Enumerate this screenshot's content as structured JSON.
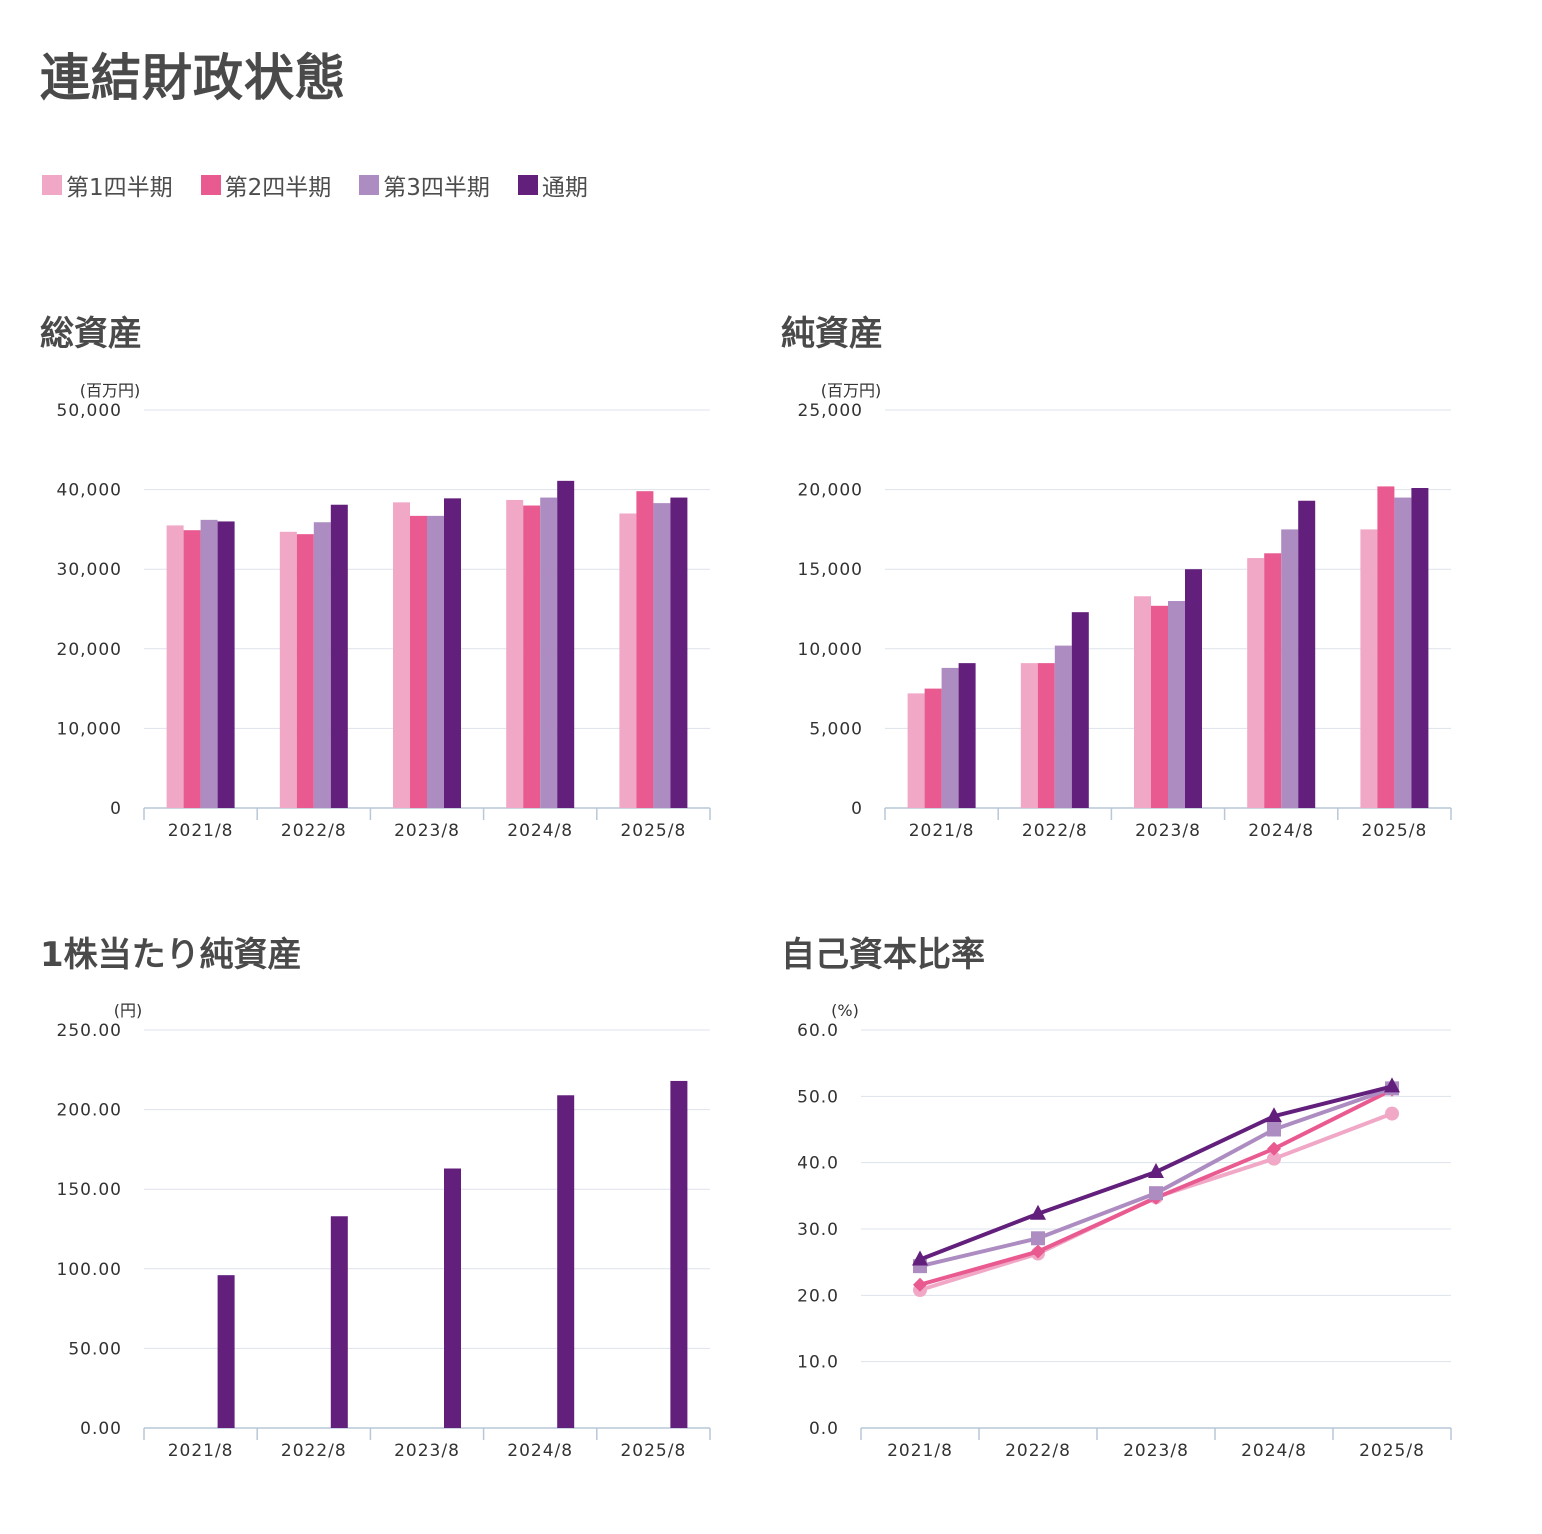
{
  "page_title": "連結財政状態",
  "legend": [
    {
      "label": "第1四半期",
      "color": "#f0a8c6"
    },
    {
      "label": "第2四半期",
      "color": "#e85a90"
    },
    {
      "label": "第3四半期",
      "color": "#ad8cc2"
    },
    {
      "label": "通期",
      "color": "#621f7c"
    }
  ],
  "chart_data": [
    {
      "title": "総資産",
      "type": "bar",
      "unit": "(百万円)",
      "categories": [
        "2021/8",
        "2022/8",
        "2023/8",
        "2024/8",
        "2025/8"
      ],
      "ylim": [
        0,
        50000
      ],
      "ytick_labels": [
        "0",
        "10,000",
        "20,000",
        "30,000",
        "40,000",
        "50,000"
      ],
      "series": [
        {
          "name": "第1四半期",
          "color": "#f0a8c6",
          "values": [
            35500,
            34700,
            38400,
            38700,
            37000
          ]
        },
        {
          "name": "第2四半期",
          "color": "#e85a90",
          "values": [
            34900,
            34400,
            36700,
            38000,
            39800
          ]
        },
        {
          "name": "第3四半期",
          "color": "#ad8cc2",
          "values": [
            36200,
            35900,
            36700,
            39000,
            38300
          ]
        },
        {
          "name": "通期",
          "color": "#621f7c",
          "values": [
            36000,
            38100,
            38900,
            41100,
            39000
          ]
        }
      ]
    },
    {
      "title": "純資産",
      "type": "bar",
      "unit": "(百万円)",
      "categories": [
        "2021/8",
        "2022/8",
        "2023/8",
        "2024/8",
        "2025/8"
      ],
      "ylim": [
        0,
        25000
      ],
      "ytick_labels": [
        "0",
        "5,000",
        "10,000",
        "15,000",
        "20,000",
        "25,000"
      ],
      "series": [
        {
          "name": "第1四半期",
          "color": "#f0a8c6",
          "values": [
            7200,
            9100,
            13300,
            15700,
            17500
          ]
        },
        {
          "name": "第2四半期",
          "color": "#e85a90",
          "values": [
            7500,
            9100,
            12700,
            16000,
            20200
          ]
        },
        {
          "name": "第3四半期",
          "color": "#ad8cc2",
          "values": [
            8800,
            10200,
            13000,
            17500,
            19500
          ]
        },
        {
          "name": "通期",
          "color": "#621f7c",
          "values": [
            9100,
            12300,
            15000,
            19300,
            20100
          ]
        }
      ]
    },
    {
      "title": "1株当たり純資産",
      "type": "bar",
      "unit": "(円)",
      "categories": [
        "2021/8",
        "2022/8",
        "2023/8",
        "2024/8",
        "2025/8"
      ],
      "ylim": [
        0,
        250
      ],
      "ytick_labels": [
        "0.00",
        "50.00",
        "100.00",
        "150.00",
        "200.00",
        "250.00"
      ],
      "series": [
        {
          "name": "通期",
          "color": "#621f7c",
          "values": [
            96,
            133,
            163,
            209,
            218
          ]
        }
      ]
    },
    {
      "title": "自己資本比率",
      "type": "line",
      "unit": "(%)",
      "categories": [
        "2021/8",
        "2022/8",
        "2023/8",
        "2024/8",
        "2025/8"
      ],
      "ylim": [
        0,
        60
      ],
      "ytick_labels": [
        "0.0",
        "10.0",
        "20.0",
        "30.0",
        "40.0",
        "50.0",
        "60.0"
      ],
      "series": [
        {
          "name": "第1四半期",
          "color": "#f0a8c6",
          "marker": "circle",
          "values": [
            20.8,
            26.3,
            34.8,
            40.6,
            47.4
          ]
        },
        {
          "name": "第2四半期",
          "color": "#e85a90",
          "marker": "diamond",
          "values": [
            21.6,
            26.6,
            34.7,
            42.1,
            51.0
          ]
        },
        {
          "name": "第3四半期",
          "color": "#ad8cc2",
          "marker": "square",
          "values": [
            24.4,
            28.6,
            35.4,
            45.0,
            51.2
          ]
        },
        {
          "name": "通期",
          "color": "#621f7c",
          "marker": "triangle",
          "values": [
            25.4,
            32.3,
            38.6,
            47.0,
            51.5
          ]
        }
      ]
    }
  ]
}
